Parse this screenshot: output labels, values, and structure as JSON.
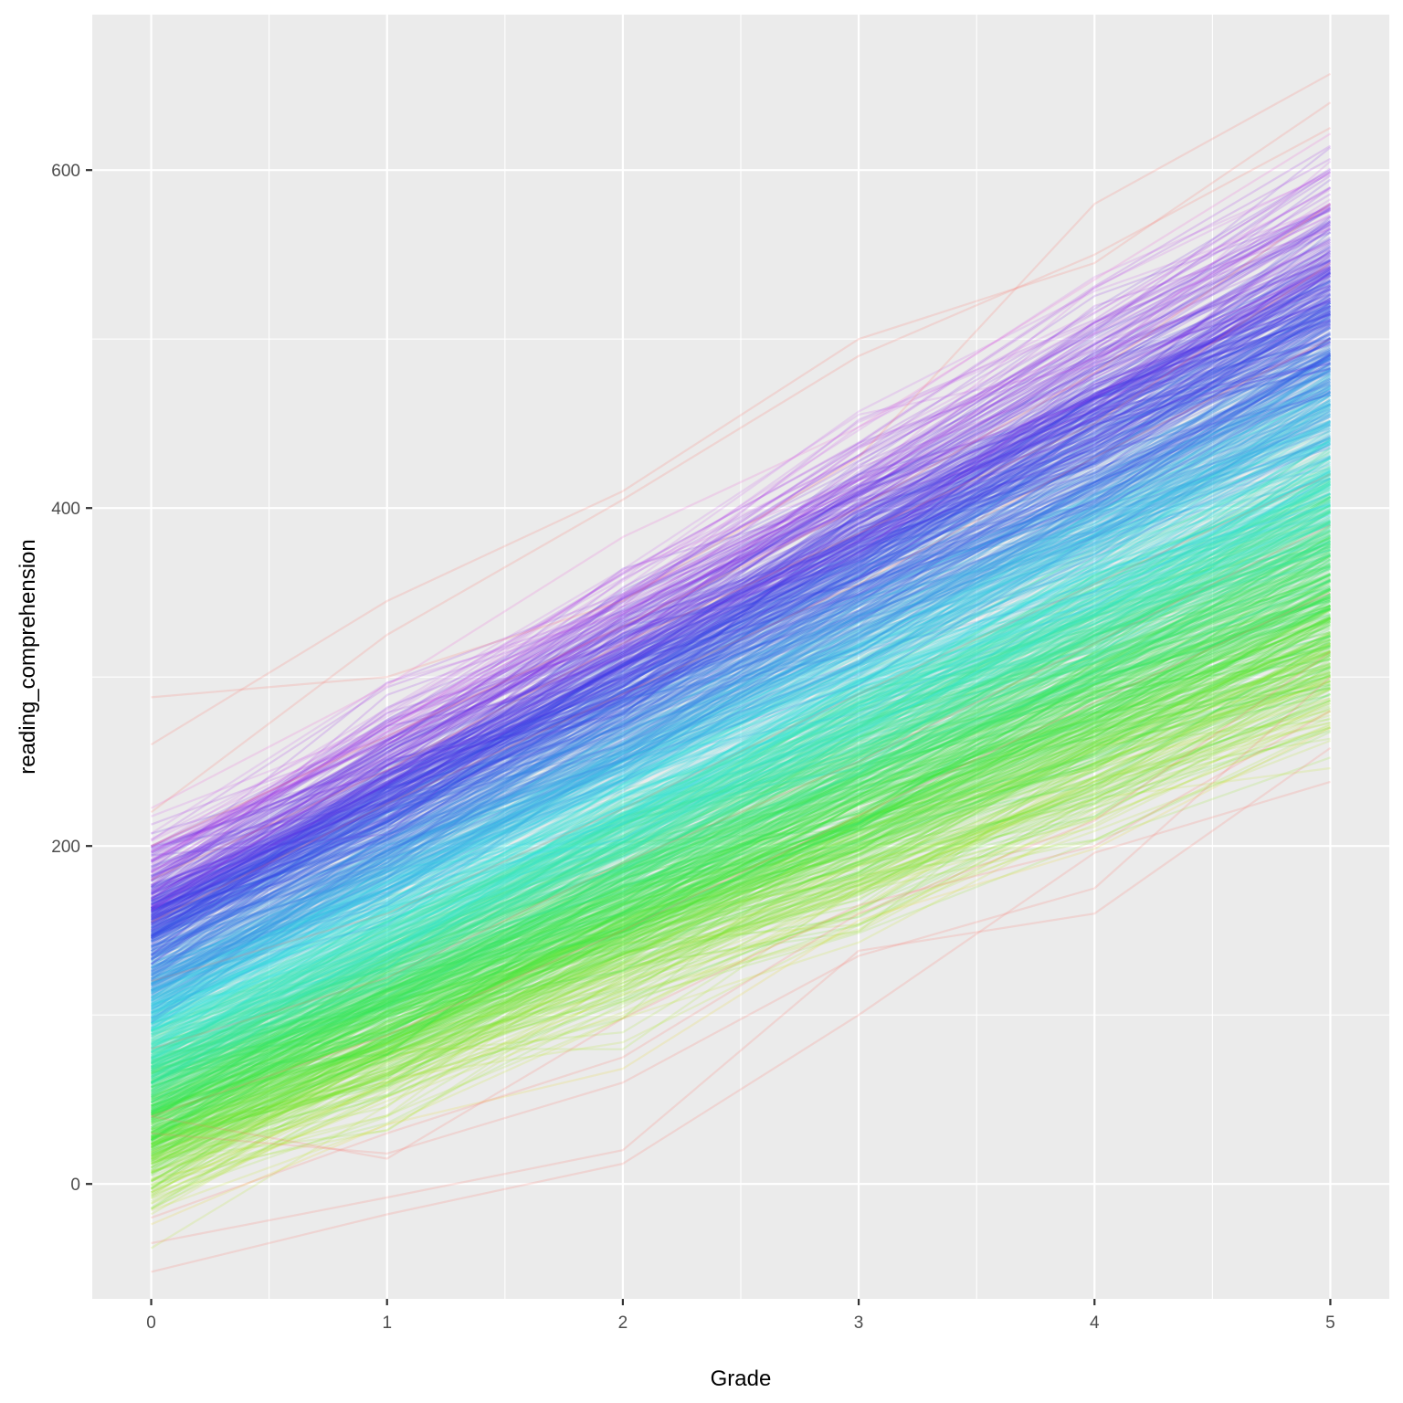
{
  "chart_data": {
    "type": "line",
    "title": "",
    "xlabel": "Grade",
    "ylabel": "reading_comprehension",
    "x": [
      0,
      1,
      2,
      3,
      4,
      5
    ],
    "xlim": [
      -0.25,
      5.25
    ],
    "ylim": [
      -68,
      692
    ],
    "x_ticks": [
      0,
      1,
      2,
      3,
      4,
      5
    ],
    "y_ticks": [
      0,
      200,
      400,
      600
    ],
    "x_tick_labels": [
      "0",
      "1",
      "2",
      "3",
      "4",
      "5"
    ],
    "y_tick_labels": [
      "0",
      "200",
      "400",
      "600"
    ],
    "grid": true,
    "legend": "none",
    "line_alpha": 0.2,
    "panel_color": "#ebebeb",
    "grid_color": "#ffffff",
    "series_summary": {
      "count": 1000,
      "colored_by": "individual",
      "palette": [
        "#f8766d",
        "#de8c00",
        "#b79f00",
        "#7cae00",
        "#00ba38",
        "#00c08b",
        "#00bfc4",
        "#00b4f0",
        "#619cff",
        "#c77cff",
        "#f564e3",
        "#ff64b0"
      ],
      "mean_trajectory": [
        95,
        165,
        230,
        300,
        365,
        430
      ],
      "range_at_grade_0": [
        -52,
        288
      ],
      "range_at_grade_5": [
        238,
        657
      ]
    },
    "series": [
      {
        "values": [
          -52,
          -18,
          12,
          100,
          196,
          238
        ]
      },
      {
        "values": [
          -35,
          -8,
          20,
          138,
          160,
          258
        ]
      },
      {
        "values": [
          288,
          300,
          345,
          430,
          580,
          657
        ]
      },
      {
        "values": [
          260,
          345,
          410,
          500,
          545,
          640
        ]
      },
      {
        "values": [
          40,
          15,
          98,
          165,
          200,
          280
        ]
      },
      {
        "values": [
          30,
          18,
          60,
          135,
          175,
          300
        ]
      },
      {
        "values": [
          220,
          325,
          405,
          490,
          550,
          625
        ]
      },
      {
        "values": [
          -20,
          30,
          75,
          160,
          215,
          315
        ]
      },
      {
        "values": [
          155,
          225,
          290,
          355,
          430,
          500
        ]
      },
      {
        "values": [
          120,
          160,
          222,
          290,
          355,
          420
        ]
      },
      {
        "values": [
          80,
          122,
          190,
          250,
          320,
          390
        ]
      },
      {
        "values": [
          40,
          88,
          150,
          218,
          285,
          350
        ]
      },
      {
        "values": [
          180,
          245,
          320,
          385,
          450,
          545
        ]
      },
      {
        "values": [
          200,
          265,
          330,
          400,
          480,
          580
        ]
      }
    ]
  }
}
